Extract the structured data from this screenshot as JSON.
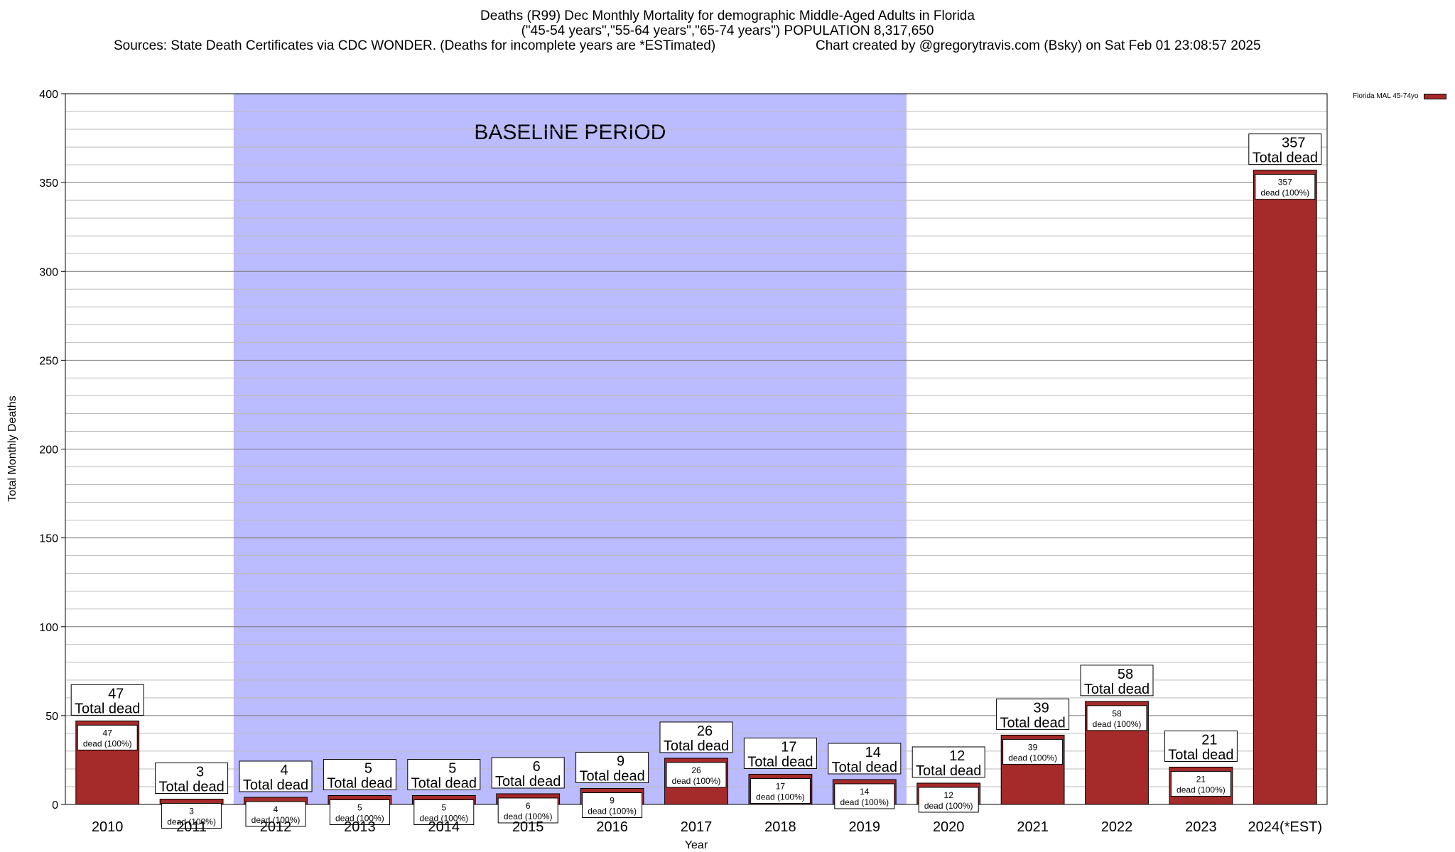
{
  "chart_data": {
    "type": "bar",
    "title_lines": [
      "Deaths (R99) Dec Monthly Mortality for demographic Middle-Aged Adults in Florida",
      "(\"45-54 years\",\"55-64 years\",\"65-74 years\") POPULATION 8,317,650"
    ],
    "source_left": "Sources: State Death Certificates via CDC WONDER. (Deaths for incomplete years are *ESTimated)",
    "source_right": "Chart created by @gregorytravis.com (Bsky) on Sat Feb 01 23:08:57 2025",
    "xlabel": "Year",
    "ylabel": "Total Monthly Deaths",
    "ylim": [
      0,
      400
    ],
    "yticks": [
      0,
      50,
      100,
      150,
      200,
      250,
      300,
      350,
      400
    ],
    "grid": true,
    "legend_position": "top-right",
    "categories": [
      "2010",
      "2011",
      "2012",
      "2013",
      "2014",
      "2015",
      "2016",
      "2017",
      "2018",
      "2019",
      "2020",
      "2021",
      "2022",
      "2023",
      "2024(*EST)"
    ],
    "series": [
      {
        "name": "Florida MAL 45-74yo",
        "color": "#a52a2a",
        "values": [
          47,
          3,
          4,
          5,
          5,
          6,
          9,
          26,
          17,
          14,
          12,
          39,
          58,
          21,
          357
        ]
      }
    ],
    "bar_label_top": "Total dead",
    "bar_label_inner": "dead (100%)",
    "baseline_region": {
      "label": "BASELINE PERIOD",
      "start": "2012",
      "end": "2019",
      "color": "#bbbbff"
    }
  }
}
